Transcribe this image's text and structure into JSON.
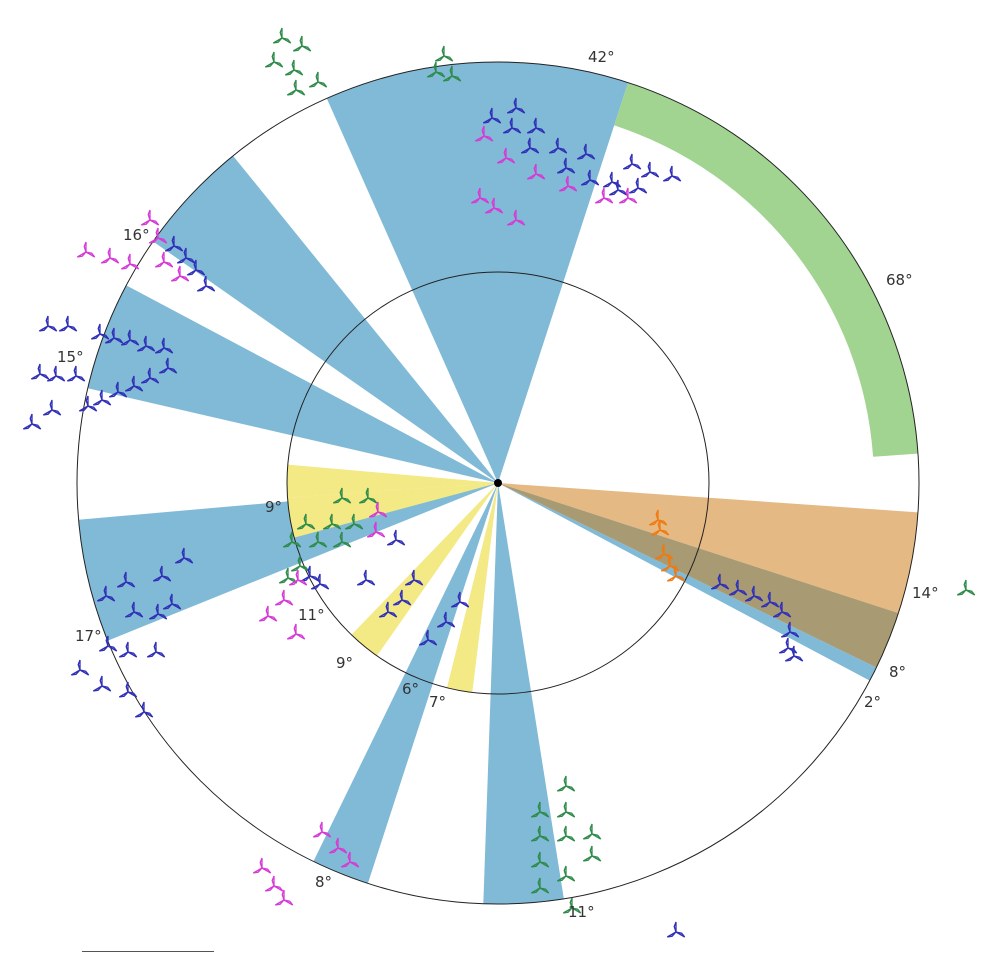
{
  "wedge_colors": {
    "blue": "#80bad6",
    "green": "#a1d490",
    "yellow": "#f3e985",
    "orange": "#e4b984",
    "brown": "#a89a72"
  },
  "marker_colors": {
    "green": "#2e8b4a",
    "blue": "#2f2fb8",
    "magenta": "#d63ad6",
    "orange": "#f07a10"
  },
  "marker_icon": "tri-blade-turbine-icon",
  "arcs": [
    {
      "id": "arc-42",
      "label": "42°"
    },
    {
      "id": "arc-68",
      "label": "68°"
    },
    {
      "id": "arc-16",
      "label": "16°"
    },
    {
      "id": "arc-15",
      "label": "15°"
    },
    {
      "id": "arc-9a",
      "label": "9°"
    },
    {
      "id": "arc-17",
      "label": "17°"
    },
    {
      "id": "arc-11a",
      "label": "11°"
    },
    {
      "id": "arc-9b",
      "label": "9°"
    },
    {
      "id": "arc-6",
      "label": "6°"
    },
    {
      "id": "arc-7",
      "label": "7°"
    },
    {
      "id": "arc-8a",
      "label": "8°"
    },
    {
      "id": "arc-11b",
      "label": "11°"
    },
    {
      "id": "arc-14",
      "label": "14°"
    },
    {
      "id": "arc-8b",
      "label": "8°"
    },
    {
      "id": "arc-2",
      "label": "2°"
    }
  ]
}
